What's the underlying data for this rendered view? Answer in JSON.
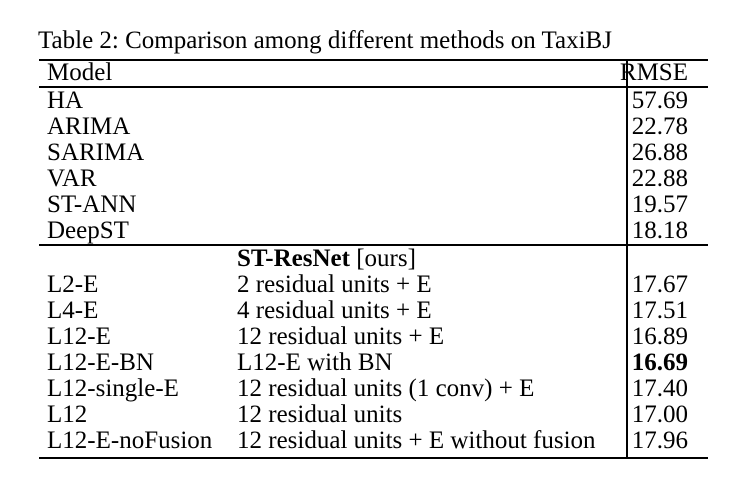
{
  "caption": "Table 2: Comparison among different methods on TaxiBJ",
  "header": {
    "model": "Model",
    "rmse": "RMSE"
  },
  "baselines": [
    {
      "model": "HA",
      "rmse": "57.69"
    },
    {
      "model": "ARIMA",
      "rmse": "22.78"
    },
    {
      "model": "SARIMA",
      "rmse": "26.88"
    },
    {
      "model": "VAR",
      "rmse": "22.88"
    },
    {
      "model": "ST-ANN",
      "rmse": "19.57"
    },
    {
      "model": "DeepST",
      "rmse": "18.18"
    }
  ],
  "group": {
    "name": "ST-ResNet",
    "tag": " [ours]"
  },
  "variants": [
    {
      "model": "L2-E",
      "desc": "2 residual units + E",
      "rmse": "17.67"
    },
    {
      "model": "L4-E",
      "desc": "4 residual units + E",
      "rmse": "17.51"
    },
    {
      "model": "L12-E",
      "desc": "12 residual units + E",
      "rmse": "16.89"
    },
    {
      "model": "L12-E-BN",
      "desc": "L12-E with BN",
      "rmse": "16.69",
      "best": true
    },
    {
      "model": "L12-single-E",
      "desc": "12 residual units (1 conv) + E",
      "rmse": "17.40"
    },
    {
      "model": "L12",
      "desc": "12 residual units",
      "rmse": "17.00"
    },
    {
      "model": "L12-E-noFusion",
      "desc": "12 residual units + E without fusion",
      "rmse": "17.96"
    }
  ]
}
